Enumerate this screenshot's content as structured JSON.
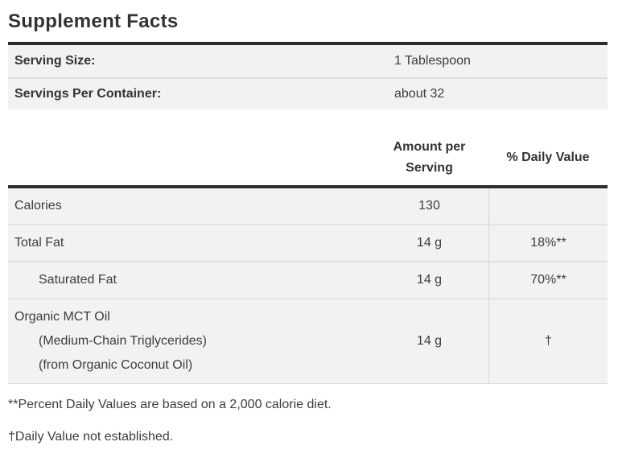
{
  "title": "Supplement Facts",
  "serving_info": {
    "rows": [
      {
        "label": "Serving Size:",
        "value": "1 Tablespoon"
      },
      {
        "label": "Servings Per Container:",
        "value": "about 32"
      }
    ]
  },
  "table": {
    "headers": {
      "amount": "Amount per Serving",
      "daily_value": "% Daily Value"
    },
    "rows": [
      {
        "lines": [
          {
            "text": "Calories",
            "indent": false
          }
        ],
        "amount": "130",
        "dv": ""
      },
      {
        "lines": [
          {
            "text": "Total Fat",
            "indent": false
          }
        ],
        "amount": "14 g",
        "dv": "18%**"
      },
      {
        "lines": [
          {
            "text": "Saturated Fat",
            "indent": true
          }
        ],
        "amount": "14 g",
        "dv": "70%**"
      },
      {
        "lines": [
          {
            "text": "Organic MCT Oil",
            "indent": false
          },
          {
            "text": "(Medium-Chain Triglycerides)",
            "indent": true
          },
          {
            "text": "(from Organic Coconut Oil)",
            "indent": true
          }
        ],
        "amount": "14 g",
        "dv": "†"
      }
    ]
  },
  "footnotes": [
    "**Percent Daily Values are based on a 2,000 calorie diet.",
    "†Daily Value not established."
  ],
  "colors": {
    "rule": "#2d2d2d",
    "row_bg": "#f2f2f2",
    "row_separator": "#e1e1e1",
    "column_divider": "#d5d5d5",
    "text": "#3d3d3d",
    "text_strong": "#333333",
    "background": "#ffffff"
  }
}
